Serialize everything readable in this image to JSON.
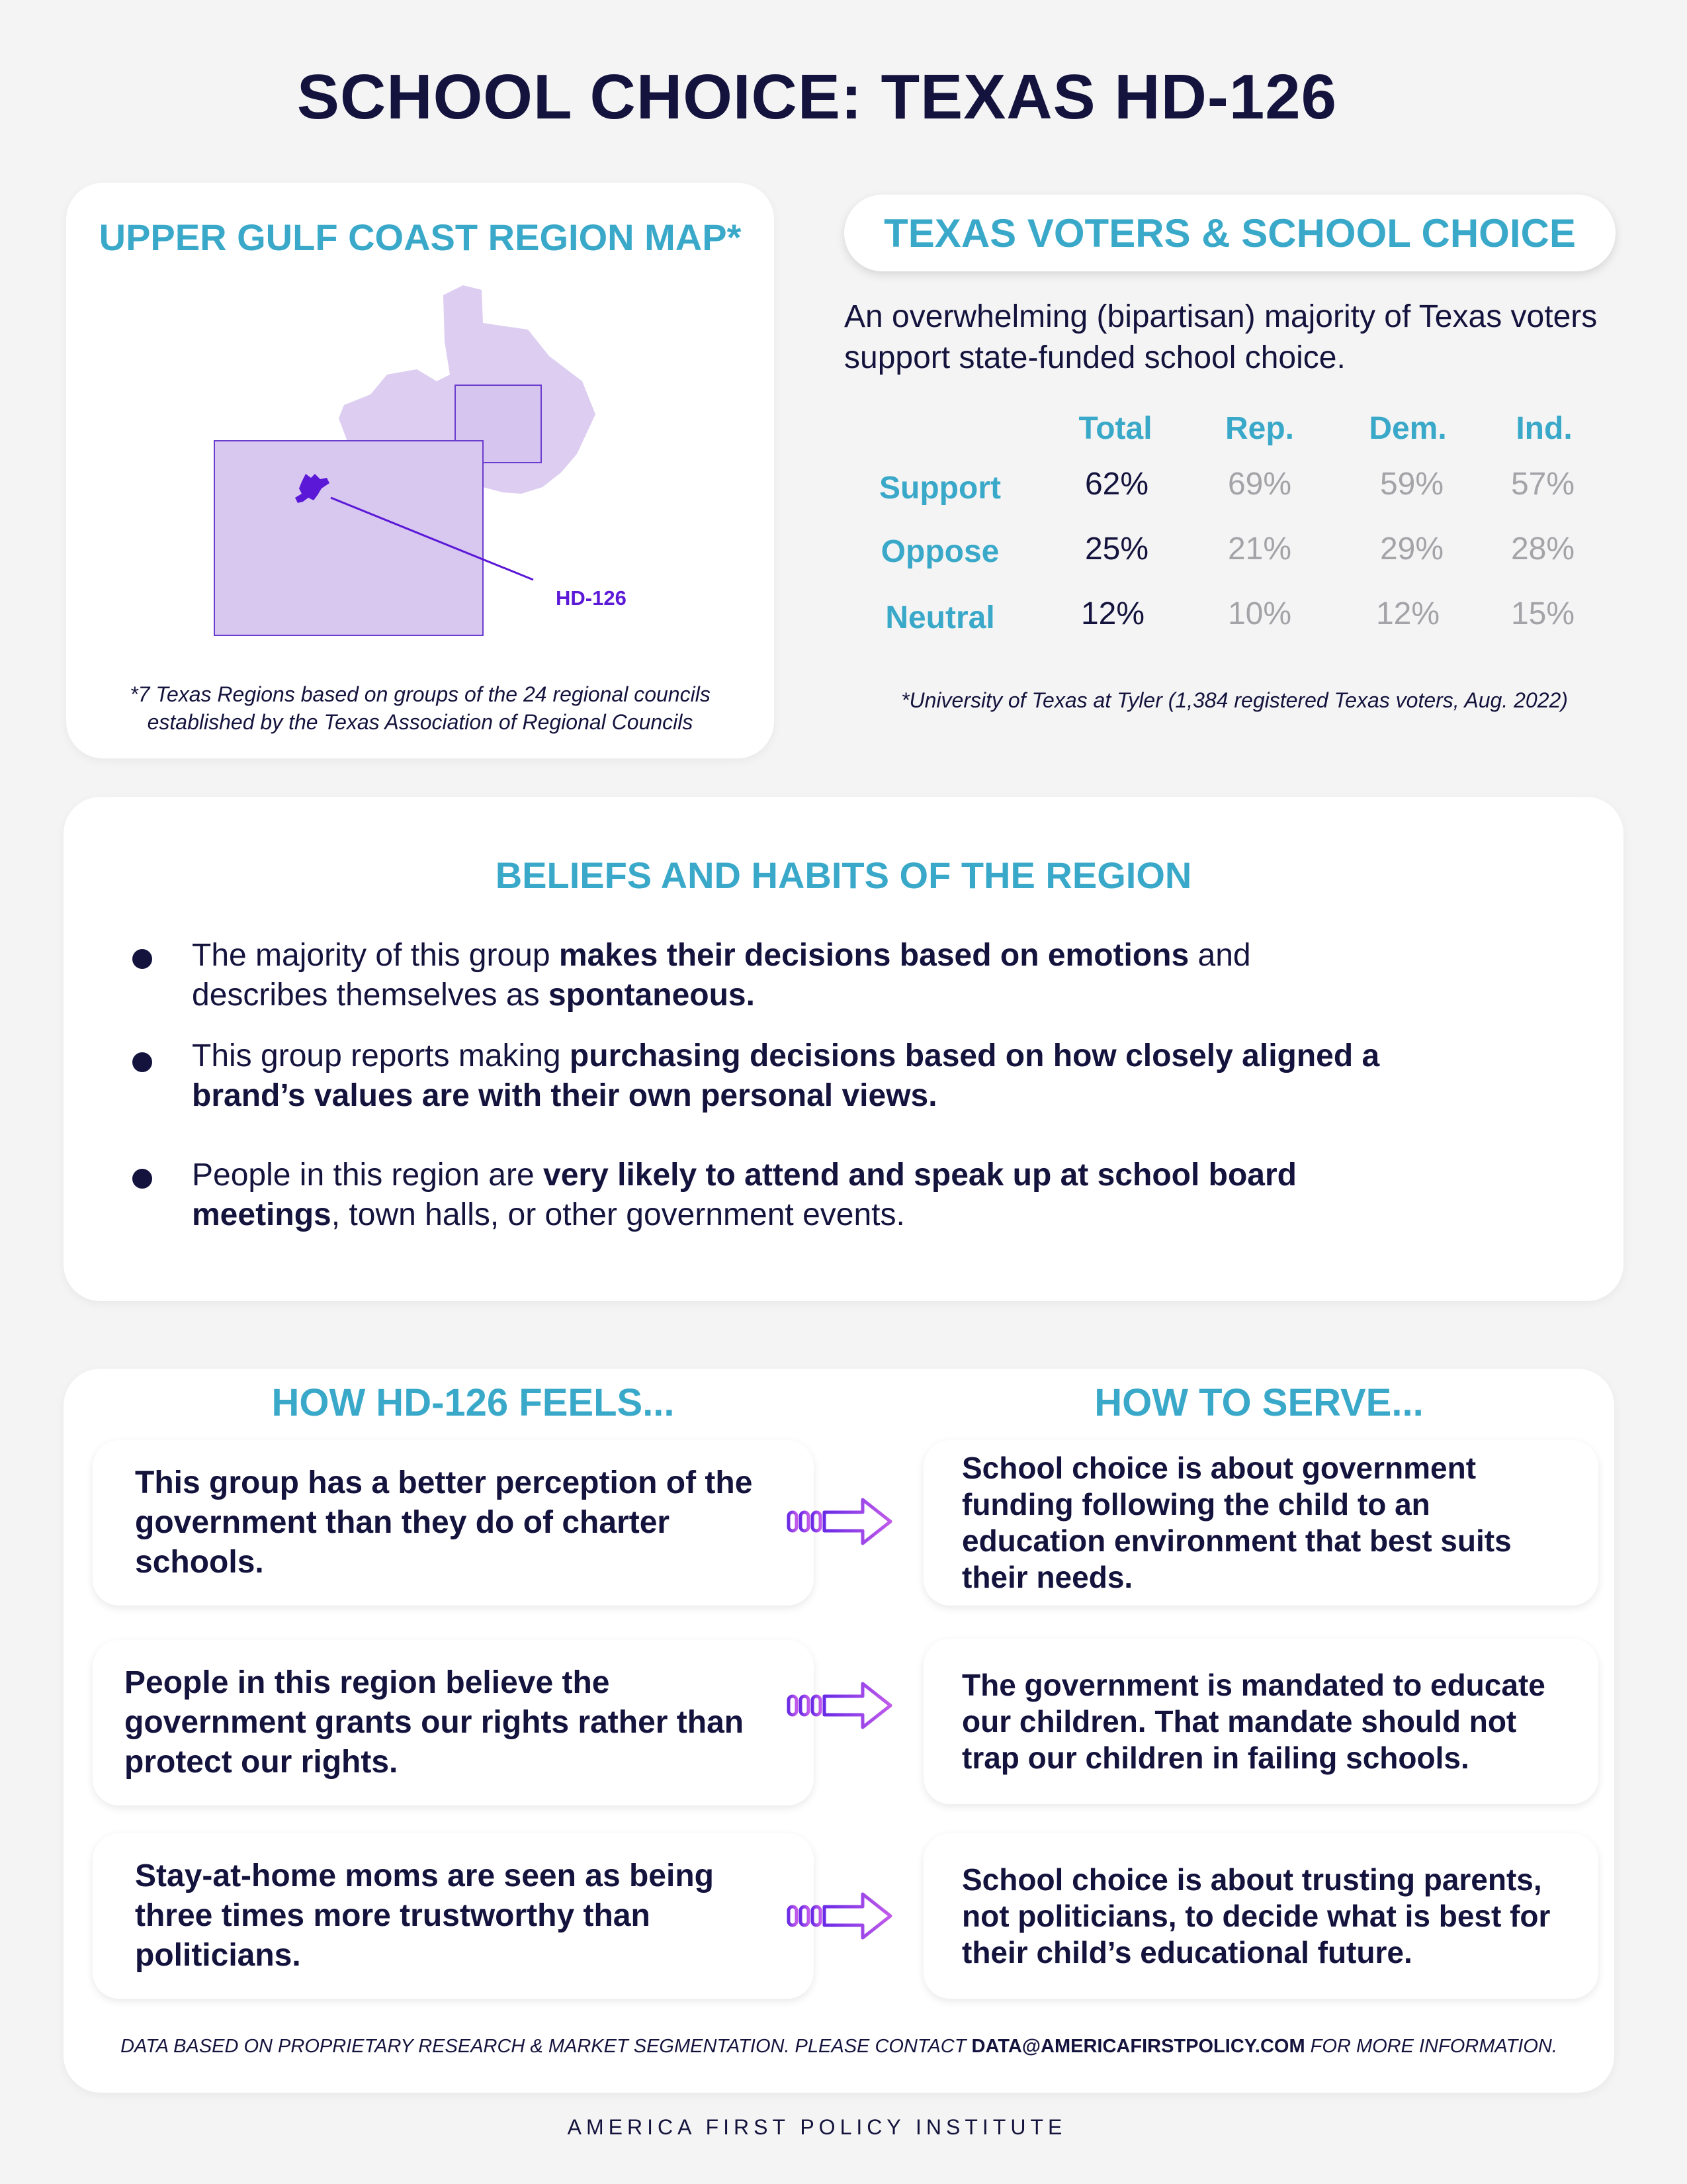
{
  "title": "SCHOOL CHOICE: TEXAS HD-126",
  "map": {
    "title": "UPPER GULF COAST REGION MAP*",
    "district_label": "HD-126",
    "footnote_line1": "*7 Texas Regions based on groups of the 24 regional councils",
    "footnote_line2": "established by the Texas Association of Regional Councils"
  },
  "voters": {
    "title": "TEXAS VOTERS & SCHOOL CHOICE",
    "intro": "An overwhelming (bipartisan) majority of Texas voters support state-funded school choice.",
    "columns": [
      "Total",
      "Rep.",
      "Dem.",
      "Ind."
    ],
    "rows": [
      {
        "label": "Support",
        "values": [
          "62%",
          "69%",
          "59%",
          "57%"
        ]
      },
      {
        "label": "Oppose",
        "values": [
          "25%",
          "21%",
          "29%",
          "28%"
        ]
      },
      {
        "label": "Neutral",
        "values": [
          "12%",
          "10%",
          "12%",
          "15%"
        ]
      }
    ],
    "source": "*University of Texas at Tyler (1,384 registered Texas voters, Aug. 2022)"
  },
  "beliefs": {
    "title": "BELIEFS AND HABITS OF THE REGION",
    "items": [
      {
        "line1_a": "The majority of this group ",
        "line1_b": "makes their decisions based on emotions",
        "line1_c": " and",
        "line2_a": "describes themselves as ",
        "line2_b": "spontaneous."
      },
      {
        "line1_a": "This group reports making ",
        "line1_b": "purchasing decisions based on how closely aligned a",
        "line2_b": "brand’s values are with their own personal views."
      },
      {
        "line1_a": "People in this region are ",
        "line1_b": "very likely to attend and speak up at school board",
        "line2_b": "meetings",
        "line2_c": ", town halls, or other government events."
      }
    ]
  },
  "feels": {
    "title": "HOW HD-126 FEELS...",
    "items": [
      "This group has a better perception of the government than they do of charter schools.",
      "People in this region believe the government grants our rights rather than protect our rights.",
      "Stay-at-home moms are seen as being three times more trustworthy than politicians."
    ]
  },
  "serve": {
    "title": "HOW TO SERVE...",
    "items": [
      "School choice is about government funding following the child to an education environment that best suits their needs.",
      "The government is mandated to educate our children. That mandate should not trap our children in failing schools.",
      "School choice is about trusting parents, not politicians, to decide what is best for their child’s educational future."
    ]
  },
  "disclaimer": {
    "text_a": "DATA BASED ON PROPRIETARY RESEARCH & MARKET SEGMENTATION. PLEASE CONTACT ",
    "email": "DATA@AMERICAFIRSTPOLICY.COM",
    "text_b": " FOR MORE INFORMATION."
  },
  "org": "AMERICA FIRST POLICY INSTITUTE",
  "colors": {
    "navy": "#14133d",
    "teal": "#3aa9c9",
    "map_fill": "#dccdf1",
    "district": "#5b18d6",
    "muted": "#a3a3a8"
  },
  "icons": {
    "flow_arrow": "chevron-arrow-right-icon"
  }
}
